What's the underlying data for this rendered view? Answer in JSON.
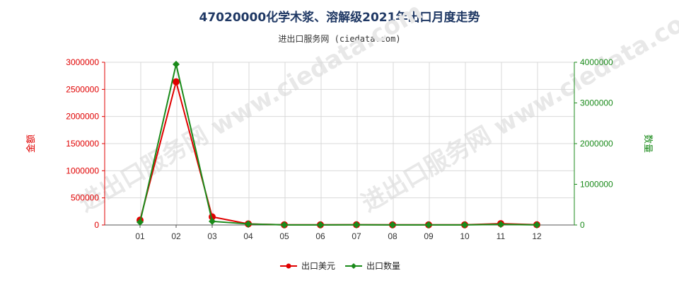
{
  "title": "47020000化学木浆、溶解级2021年出口月度走势",
  "subtitle": "进出口服务网 (ciedata.com)",
  "watermark": "进出口服务网 www.ciedata.com",
  "colors": {
    "series1": "#e00000",
    "series2": "#1a8a1a"
  },
  "chart_data": {
    "type": "line",
    "categories": [
      "01",
      "02",
      "03",
      "04",
      "05",
      "06",
      "07",
      "08",
      "09",
      "10",
      "11",
      "12"
    ],
    "y_left": {
      "label": "金额",
      "lim": [
        0,
        3000000
      ],
      "ticks": [
        "0",
        "500000",
        "1000000",
        "1500000",
        "2000000",
        "2500000",
        "3000000"
      ]
    },
    "y_right": {
      "label": "数量",
      "lim": [
        0,
        4000000
      ],
      "ticks": [
        "0",
        "1000000",
        "2000000",
        "3000000",
        "4000000"
      ]
    },
    "series": [
      {
        "name": "出口美元",
        "axis": "left",
        "values": [
          90000,
          2640000,
          150000,
          20000,
          3000,
          3000,
          5000,
          3000,
          3000,
          3000,
          25000,
          5000
        ]
      },
      {
        "name": "出口数量",
        "axis": "right",
        "values": [
          70000,
          3950000,
          90000,
          25000,
          3000,
          3000,
          5000,
          3000,
          3000,
          3000,
          15000,
          3000
        ]
      }
    ],
    "grid": true,
    "legend_position": "bottom"
  }
}
